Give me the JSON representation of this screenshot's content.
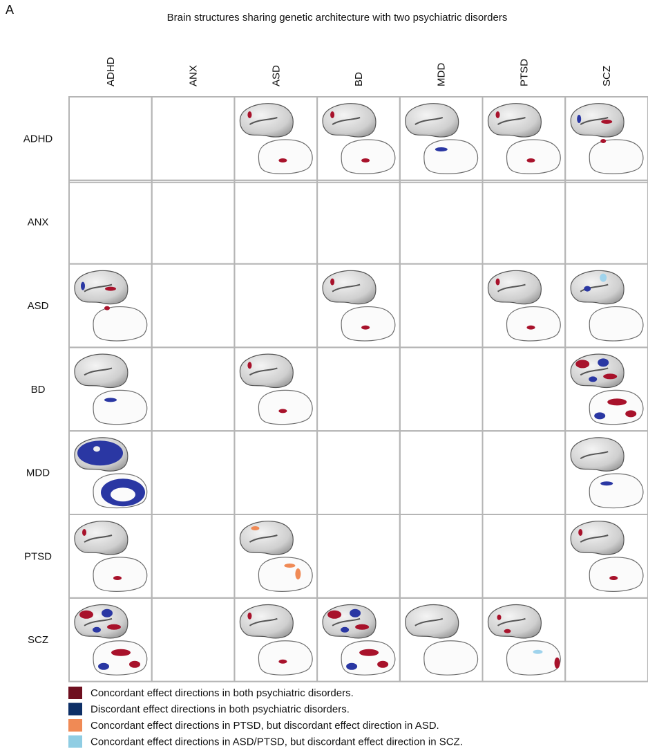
{
  "panel_label": "A",
  "title": "Brain structures sharing genetic architecture with two psychiatric disorders",
  "columns": [
    "ADHD",
    "ANX",
    "ASD",
    "BD",
    "MDD",
    "PTSD",
    "SCZ"
  ],
  "rows": [
    "ADHD",
    "ANX",
    "ASD",
    "BD",
    "MDD",
    "PTSD",
    "SCZ"
  ],
  "legend": [
    {
      "label": "Concordant effect directions in both psychiatric disorders.",
      "color": "#6e0f1f"
    },
    {
      "label": "Discordant effect directions in both psychiatric disorders.",
      "color": "#0d2f66"
    },
    {
      "label": "Concordant effect directions in PTSD, but discordant effect direction in ASD.",
      "color": "#f08a55"
    },
    {
      "label": "Concordant effect directions in ASD/PTSD, but discordant effect direction in SCZ.",
      "color": "#8fcde3"
    }
  ]
}
